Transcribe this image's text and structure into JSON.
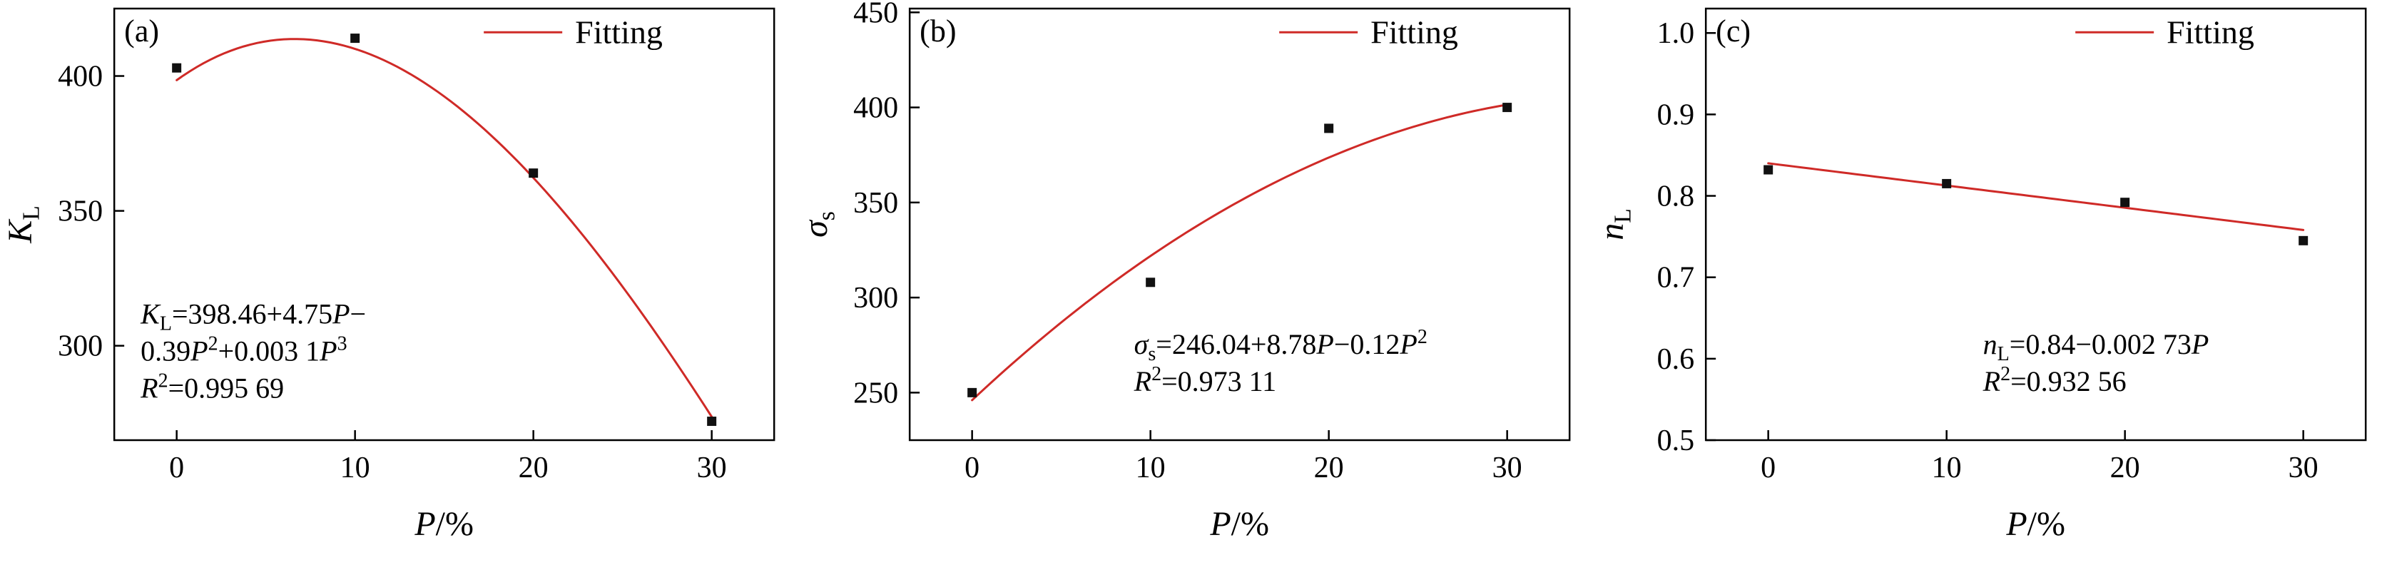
{
  "figure": {
    "background": "#ffffff"
  },
  "colors": {
    "fit_line": "#cf2a27",
    "marker": "#111111",
    "axis": "#000000",
    "text": "#000000"
  },
  "chart_data": [
    {
      "type": "scatter",
      "panel_label": "(a)",
      "legend_label": "Fitting",
      "xlabel_segments": [
        {
          "t": "P",
          "i": true
        },
        {
          "t": "/%"
        }
      ],
      "ylabel_segments": [
        {
          "t": "K",
          "i": true
        },
        {
          "t": "L",
          "sub": true
        }
      ],
      "x": [
        0,
        10,
        20,
        30
      ],
      "y": [
        403,
        414,
        364,
        272
      ],
      "fit": {
        "kind": "polynomial",
        "coeffs": [
          398.46,
          4.75,
          -0.39,
          0.0031
        ],
        "range": [
          0,
          30
        ],
        "equation_text": "K_L=398.46+4.75P−0.39P^2+0.003 1P^3",
        "r_squared": "0.995 69"
      },
      "xlim": [
        -3.5,
        33.5
      ],
      "ylim": [
        265,
        425
      ],
      "xticks": [
        {
          "v": 0,
          "label": "0"
        },
        {
          "v": 10,
          "label": "10"
        },
        {
          "v": 20,
          "label": "20"
        },
        {
          "v": 30,
          "label": "30"
        }
      ],
      "yticks": [
        {
          "v": 300,
          "label": "300"
        },
        {
          "v": 350,
          "label": "350"
        },
        {
          "v": 400,
          "label": "400"
        }
      ],
      "grid": false,
      "legend_position": "top-right-inside",
      "legend_pos": {
        "x": 0.56,
        "y": 0.055
      },
      "annotation": {
        "x": 0.04,
        "y": 0.73,
        "line_height": 52,
        "lines": [
          [
            {
              "t": "K",
              "i": true
            },
            {
              "t": "L",
              "sub": true
            },
            {
              "t": "=398.46+4.75"
            },
            {
              "t": "P",
              "i": true
            },
            {
              "t": "−"
            }
          ],
          [
            {
              "t": "0.39"
            },
            {
              "t": "P",
              "i": true
            },
            {
              "t": "2",
              "sup": true
            },
            {
              "t": "+0.003 1"
            },
            {
              "t": "P",
              "i": true
            },
            {
              "t": "3",
              "sup": true
            }
          ],
          [
            {
              "t": "R",
              "i": true
            },
            {
              "t": "2",
              "sup": true
            },
            {
              "t": "=0.995 69"
            }
          ]
        ]
      }
    },
    {
      "type": "scatter",
      "panel_label": "(b)",
      "legend_label": "Fitting",
      "xlabel_segments": [
        {
          "t": "P",
          "i": true
        },
        {
          "t": "/%"
        }
      ],
      "ylabel_segments": [
        {
          "t": "σ",
          "i": true
        },
        {
          "t": "s",
          "sub": true
        }
      ],
      "x": [
        0,
        10,
        20,
        30
      ],
      "y": [
        250,
        308,
        389,
        400
      ],
      "fit": {
        "kind": "polynomial",
        "coeffs": [
          246.04,
          8.78,
          -0.12
        ],
        "range": [
          0,
          30
        ],
        "equation_text": "σ_s=246.04+8.78P−0.12P^2",
        "r_squared": "0.973 11"
      },
      "xlim": [
        -3.5,
        33.5
      ],
      "ylim": [
        225,
        452
      ],
      "xticks": [
        {
          "v": 0,
          "label": "0"
        },
        {
          "v": 10,
          "label": "10"
        },
        {
          "v": 20,
          "label": "20"
        },
        {
          "v": 30,
          "label": "30"
        }
      ],
      "yticks": [
        {
          "v": 250,
          "label": "250"
        },
        {
          "v": 300,
          "label": "300"
        },
        {
          "v": 350,
          "label": "350"
        },
        {
          "v": 400,
          "label": "400"
        },
        {
          "v": 450,
          "label": "450"
        }
      ],
      "grid": false,
      "legend_position": "top-right-inside",
      "legend_pos": {
        "x": 0.56,
        "y": 0.055
      },
      "annotation": {
        "x": 0.34,
        "y": 0.8,
        "line_height": 52,
        "lines": [
          [
            {
              "t": "σ",
              "i": true
            },
            {
              "t": "s",
              "sub": true
            },
            {
              "t": "=246.04+8.78"
            },
            {
              "t": "P",
              "i": true
            },
            {
              "t": "−0.12"
            },
            {
              "t": "P",
              "i": true
            },
            {
              "t": "2",
              "sup": true
            }
          ],
          [
            {
              "t": "R",
              "i": true
            },
            {
              "t": "2",
              "sup": true
            },
            {
              "t": "=0.973 11"
            }
          ]
        ]
      }
    },
    {
      "type": "scatter",
      "panel_label": "(c)",
      "legend_label": "Fitting",
      "xlabel_segments": [
        {
          "t": "P",
          "i": true
        },
        {
          "t": "/%"
        }
      ],
      "ylabel_segments": [
        {
          "t": "n",
          "i": true
        },
        {
          "t": "L",
          "sub": true
        }
      ],
      "x": [
        0,
        10,
        20,
        30
      ],
      "y": [
        0.832,
        0.815,
        0.792,
        0.745
      ],
      "fit": {
        "kind": "polynomial",
        "coeffs": [
          0.84,
          -0.00273
        ],
        "range": [
          0,
          30
        ],
        "equation_text": "n_L=0.84−0.002 73P",
        "r_squared": "0.932 56"
      },
      "xlim": [
        -3.5,
        33.5
      ],
      "ylim": [
        0.5,
        1.03
      ],
      "xticks": [
        {
          "v": 0,
          "label": "0"
        },
        {
          "v": 10,
          "label": "10"
        },
        {
          "v": 20,
          "label": "20"
        },
        {
          "v": 30,
          "label": "30"
        }
      ],
      "yticks": [
        {
          "v": 0.5,
          "label": "0.5"
        },
        {
          "v": 0.6,
          "label": "0.6"
        },
        {
          "v": 0.7,
          "label": "0.7"
        },
        {
          "v": 0.8,
          "label": "0.8"
        },
        {
          "v": 0.9,
          "label": "0.9"
        },
        {
          "v": 1.0,
          "label": "1.0"
        }
      ],
      "grid": false,
      "legend_position": "top-right-inside",
      "legend_pos": {
        "x": 0.56,
        "y": 0.055
      },
      "annotation": {
        "x": 0.42,
        "y": 0.8,
        "line_height": 52,
        "lines": [
          [
            {
              "t": "n",
              "i": true
            },
            {
              "t": "L",
              "sub": true
            },
            {
              "t": "=0.84−0.002 73"
            },
            {
              "t": "P",
              "i": true
            }
          ],
          [
            {
              "t": "R",
              "i": true
            },
            {
              "t": "2",
              "sup": true
            },
            {
              "t": "=0.932 56"
            }
          ]
        ]
      }
    }
  ]
}
